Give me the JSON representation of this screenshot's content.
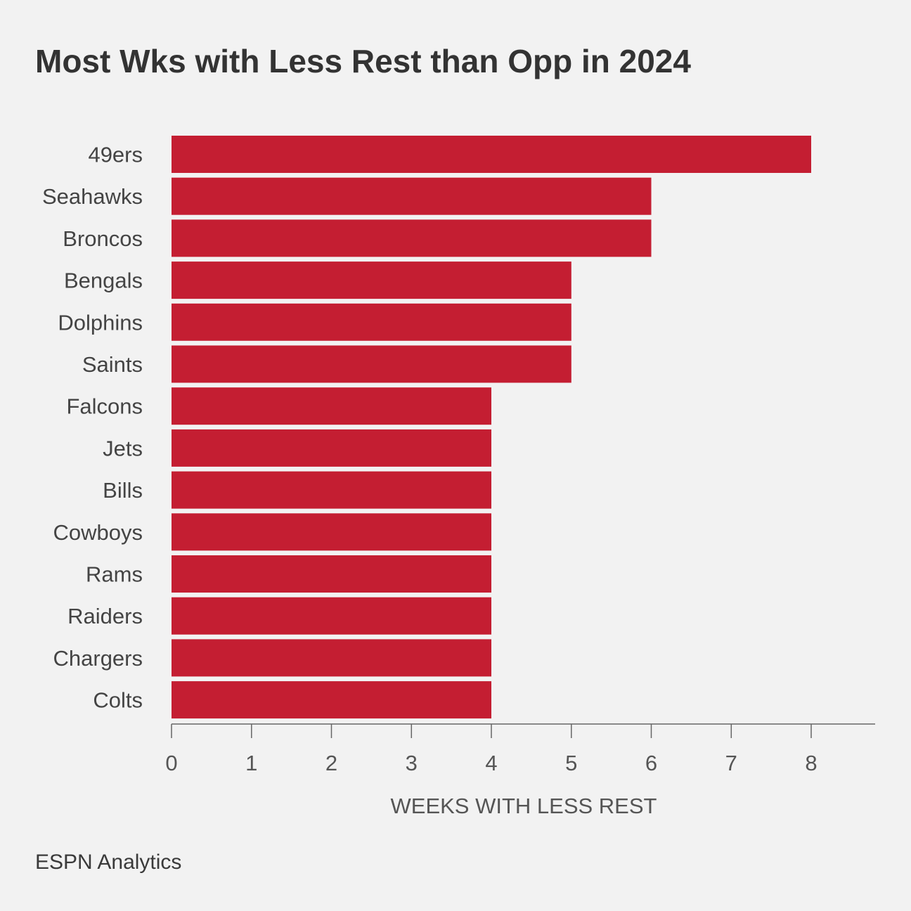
{
  "chart_data": {
    "type": "bar",
    "orientation": "horizontal",
    "title": "Most Wks with Less Rest than Opp in 2024",
    "xlabel": "WEEKS WITH LESS REST",
    "ylabel": "",
    "categories": [
      "49ers",
      "Seahawks",
      "Broncos",
      "Bengals",
      "Dolphins",
      "Saints",
      "Falcons",
      "Jets",
      "Bills",
      "Cowboys",
      "Rams",
      "Raiders",
      "Chargers",
      "Colts"
    ],
    "values": [
      8,
      6,
      6,
      5,
      5,
      5,
      4,
      4,
      4,
      4,
      4,
      4,
      4,
      4
    ],
    "xlim": [
      0,
      8.8
    ],
    "xticks": [
      0,
      1,
      2,
      3,
      4,
      5,
      6,
      7,
      8
    ],
    "grid": false,
    "legend": "none",
    "bar_color": "#c41e32",
    "source": "ESPN Analytics"
  }
}
